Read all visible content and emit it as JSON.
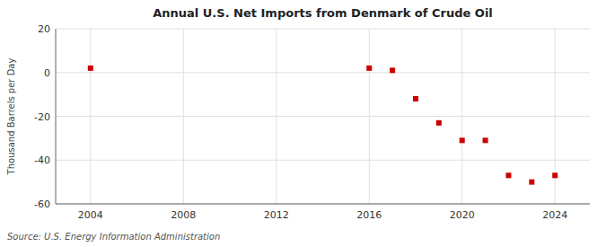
{
  "chart_data": {
    "type": "scatter",
    "title": "Annual U.S. Net Imports from Denmark of Crude Oil",
    "ylabel": "Thousand Barrels per Day",
    "source": "Source: U.S. Energy Information Administration",
    "x": [
      2004,
      2016,
      2017,
      2018,
      2019,
      2020,
      2021,
      2022,
      2023,
      2024
    ],
    "values": [
      2,
      2,
      1,
      -12,
      -23,
      -31,
      -31,
      -47,
      -50,
      -47
    ],
    "color": "#cc0000",
    "marker": "square",
    "xlim": [
      2002.5,
      2025.5
    ],
    "xticks": [
      2004,
      2008,
      2012,
      2016,
      2020,
      2024
    ],
    "ylim": [
      -60,
      20
    ],
    "yticks": [
      -60,
      -40,
      -20,
      0,
      20
    ],
    "grid": true
  }
}
